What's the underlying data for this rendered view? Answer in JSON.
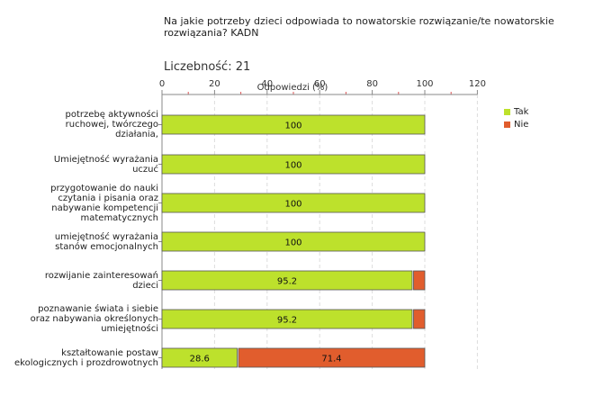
{
  "title": "Na jakie potrzeby dzieci odpowiada to nowatorskie rozwiązanie/te nowatorskie rozwiązania? KADN",
  "count_label": "Liczebność:",
  "count_value": "21",
  "colors": {
    "tak": "#bde12c",
    "nie": "#e15d2d",
    "axis": "#888888",
    "grid": "#dddddd"
  },
  "chart_data": {
    "type": "bar",
    "orientation": "horizontal",
    "stacked": true,
    "xlabel": "Odpowiedzi (%)",
    "xlim": [
      0,
      120
    ],
    "xticks": [
      0,
      20,
      40,
      60,
      80,
      100,
      120
    ],
    "grid": true,
    "legend_position": "right",
    "categories": [
      "potrzebę aktywności ruchowej, twórczego działania,",
      "Umiejętność wyrażania uczuć",
      "przygotowanie do nauki czytania i pisania oraz nabywanie kompetencji matematycznych",
      "umiejętność wyrażania stanów emocjonalnych",
      "rozwijanie zainteresowań dzieci",
      "poznawanie świata i siebie oraz nabywania określonych umiejętności",
      "kształtowanie postaw ekologicznych i prozdrowotnych"
    ],
    "series": [
      {
        "name": "Tak",
        "values": [
          100,
          100,
          100,
          100,
          95.2,
          95.2,
          28.6
        ]
      },
      {
        "name": "Nie",
        "values": [
          0,
          0,
          0,
          0,
          4.8,
          4.8,
          71.4
        ]
      }
    ],
    "value_labels": {
      "Tak": [
        "100",
        "100",
        "100",
        "100",
        "95.2",
        "95.2",
        "28.6"
      ],
      "Nie": [
        "",
        "",
        "",
        "",
        "",
        "",
        "71.4"
      ]
    }
  }
}
